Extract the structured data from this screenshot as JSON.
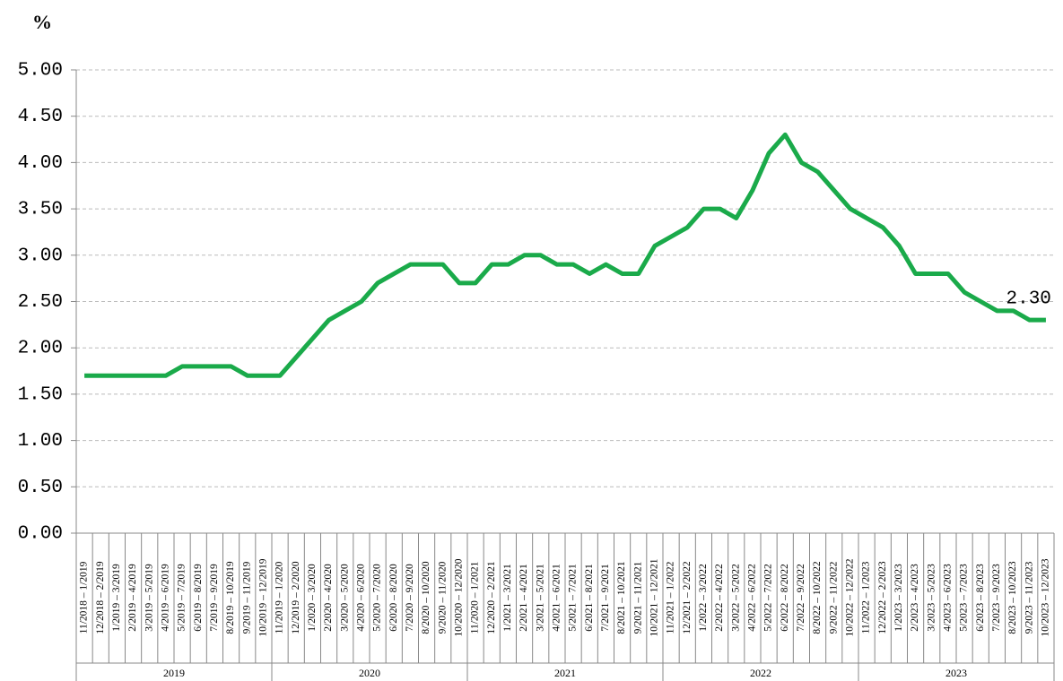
{
  "chart_data": {
    "type": "line",
    "y_unit": "%",
    "categories": [
      "11/2018 – 1/2019",
      "12/2018 – 2/2019",
      "1/2019 – 3/2019",
      "2/2019 – 4/2019",
      "3/2019 – 5/2019",
      "4/2019 – 6/2019",
      "5/2019 – 7/2019",
      "6/2019 – 8/2019",
      "7/2019 – 9/2019",
      "8/2019 – 10/2019",
      "9/2019 – 11/2019",
      "10/2019 – 12/2019",
      "11/2019 – 1/2020",
      "12/2019 – 2/2020",
      "1/2020 – 3/2020",
      "2/2020 – 4/2020",
      "3/2020 – 5/2020",
      "4/2020 – 6/2020",
      "5/2020 – 7/2020",
      "6/2020 – 8/2020",
      "7/2020 – 9/2020",
      "8/2020 – 10/2020",
      "9/2020 – 11/2020",
      "10/2020 – 12/2020",
      "11/2020 – 1/2021",
      "12/2020 – 2/2021",
      "1/2021 – 3/2021",
      "2/2021 – 4/2021",
      "3/2021 – 5/2021",
      "4/2021 – 6/2021",
      "5/2021 – 7/2021",
      "6/2021 – 8/2021",
      "7/2021 – 9/2021",
      "8/2021 – 10/2021",
      "9/2021 – 11/2021",
      "10/2021 – 12/2021",
      "11/2021 – 1/2022",
      "12/2021 – 2/2022",
      "1/2022 – 3/2022",
      "2/2022 – 4/2022",
      "3/2022 – 5/2022",
      "4/2022 – 6/2022",
      "5/2022 – 7/2022",
      "6/2022 – 8/2022",
      "7/2022 – 9/2022",
      "8/2022 – 10/2022",
      "9/2022 – 11/2022",
      "10/2022 – 12/2022",
      "11/2022 – 1/2023",
      "12/2022 – 2/2023",
      "1/2023 – 3/2023",
      "2/2023 – 4/2023",
      "3/2023 – 5/2023",
      "4/2023 – 6/2023",
      "5/2023 – 7/2023",
      "6/2023 – 8/2023",
      "7/2023 – 9/2023",
      "8/2023 – 10/2023",
      "9/2023 – 11/2023",
      "10/2023 – 12/2023"
    ],
    "groups": [
      {
        "label": "2019",
        "from": 0,
        "to": 11
      },
      {
        "label": "2020",
        "from": 12,
        "to": 23
      },
      {
        "label": "2021",
        "from": 24,
        "to": 35
      },
      {
        "label": "2022",
        "from": 36,
        "to": 47
      },
      {
        "label": "2023",
        "from": 48,
        "to": 59
      }
    ],
    "series": [
      {
        "color": "#1aaa4a",
        "values": [
          1.7,
          1.7,
          1.7,
          1.7,
          1.7,
          1.7,
          1.8,
          1.8,
          1.8,
          1.8,
          1.7,
          1.7,
          1.7,
          1.9,
          2.1,
          2.3,
          2.4,
          2.5,
          2.7,
          2.8,
          2.9,
          2.9,
          2.9,
          2.7,
          2.7,
          2.9,
          2.9,
          3.0,
          3.0,
          2.9,
          2.9,
          2.8,
          2.9,
          2.8,
          2.8,
          3.1,
          3.2,
          3.3,
          3.5,
          3.5,
          3.4,
          3.7,
          4.1,
          4.3,
          4.0,
          3.9,
          3.7,
          3.5,
          3.4,
          3.3,
          3.1,
          2.8,
          2.8,
          2.8,
          2.6,
          2.5,
          2.4,
          2.4,
          2.3,
          2.3
        ],
        "value_labels": [
          null,
          null,
          null,
          null,
          null,
          null,
          null,
          null,
          null,
          null,
          null,
          null,
          null,
          null,
          null,
          null,
          null,
          null,
          null,
          null,
          null,
          null,
          null,
          null,
          null,
          null,
          null,
          null,
          null,
          null,
          null,
          null,
          null,
          null,
          null,
          null,
          null,
          null,
          null,
          null,
          null,
          null,
          null,
          null,
          null,
          null,
          null,
          null,
          null,
          null,
          null,
          null,
          null,
          null,
          null,
          null,
          null,
          null,
          null,
          "2.30"
        ]
      }
    ],
    "ylim": [
      0,
      5
    ],
    "yticks": [
      {
        "value": 0,
        "label": "0.00"
      },
      {
        "value": 0.5,
        "label": "0.50"
      },
      {
        "value": 1,
        "label": "1.00"
      },
      {
        "value": 1.5,
        "label": "1.50"
      },
      {
        "value": 2,
        "label": "2.00"
      },
      {
        "value": 2.5,
        "label": "2.50"
      },
      {
        "value": 3,
        "label": "3.00"
      },
      {
        "value": 3.5,
        "label": "3.50"
      },
      {
        "value": 4,
        "label": "4.00"
      },
      {
        "value": 4.5,
        "label": "4.50"
      },
      {
        "value": 5,
        "label": "5.00"
      }
    ],
    "grid": true
  }
}
